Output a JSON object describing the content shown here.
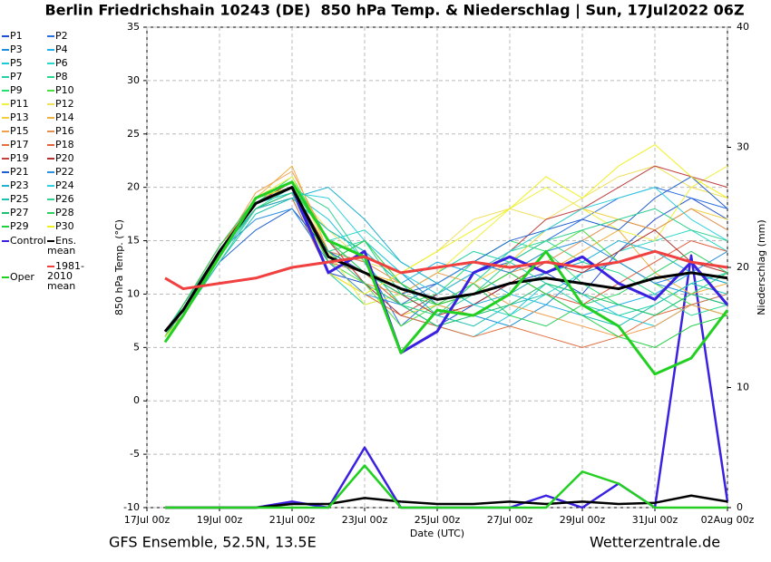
{
  "chart_data": {
    "type": "line",
    "title": "Berlin Friedrichshain 10243 (DE)  850 hPa Temp. & Niederschlag | Sun, 17Jul2022 06Z",
    "source_left": "GFS Ensemble, 52.5N, 13.5E",
    "source_right": "Wetterzentrale.de",
    "xlabel": "Date (UTC)",
    "ylabel": "850 hPa Temp. (°C)",
    "y2label": "Niederschlag (mm)",
    "x": [
      0.5,
      1,
      2,
      3,
      4,
      5,
      6,
      7,
      8,
      9,
      10,
      11,
      12,
      13,
      14,
      15,
      16
    ],
    "xlim": [
      0,
      16
    ],
    "xticks": [
      {
        "value": 0,
        "label": "17Jul 00z"
      },
      {
        "value": 2,
        "label": "19Jul 00z"
      },
      {
        "value": 4,
        "label": "21Jul 00z"
      },
      {
        "value": 6,
        "label": "23Jul 00z"
      },
      {
        "value": 8,
        "label": "25Jul 00z"
      },
      {
        "value": 10,
        "label": "27Jul 00z"
      },
      {
        "value": 12,
        "label": "29Jul 00z"
      },
      {
        "value": 14,
        "label": "31Jul 00z"
      },
      {
        "value": 16,
        "label": "02Aug 00z"
      }
    ],
    "ylim": [
      -10,
      35
    ],
    "yticks": [
      -10,
      -5,
      0,
      5,
      10,
      15,
      20,
      25,
      30,
      35
    ],
    "y2lim": [
      0,
      40
    ],
    "y2ticks": [
      0,
      10,
      20,
      30,
      40
    ],
    "grid": true,
    "series": [
      {
        "name": "P1",
        "color": "#1f4fd0",
        "values": [
          6,
          8.5,
          14,
          18,
          19.5,
          12,
          11,
          8,
          7,
          9,
          11,
          12,
          10,
          14,
          17,
          19,
          17
        ]
      },
      {
        "name": "P2",
        "color": "#2a6ee0",
        "values": [
          6.5,
          9,
          14.5,
          19,
          20,
          14,
          13,
          7,
          10,
          12,
          13,
          15,
          17,
          19,
          20,
          19,
          18
        ]
      },
      {
        "name": "P3",
        "color": "#1e8fd8",
        "values": [
          6,
          8,
          13.5,
          18.5,
          20,
          13,
          15,
          12,
          9,
          8,
          7,
          9,
          12,
          13,
          11,
          10,
          9
        ]
      },
      {
        "name": "P4",
        "color": "#26b0e6",
        "values": [
          6,
          8.5,
          14,
          18,
          19,
          16,
          14,
          11,
          13,
          12,
          10,
          9,
          8,
          9,
          10,
          12,
          11
        ]
      },
      {
        "name": "P5",
        "color": "#1ec8d8",
        "values": [
          6.5,
          9,
          14,
          18.5,
          19.5,
          17,
          13,
          9,
          7,
          6,
          8,
          11,
          10,
          8,
          7,
          9,
          10
        ]
      },
      {
        "name": "P6",
        "color": "#2ad8c8",
        "values": [
          6,
          8.5,
          13.5,
          19,
          20,
          15,
          16,
          13,
          11,
          9,
          8,
          10,
          12,
          14,
          15,
          16,
          14
        ]
      },
      {
        "name": "P7",
        "color": "#22d0a8",
        "values": [
          6,
          9,
          14,
          18,
          19,
          12,
          9,
          10,
          12,
          14,
          13,
          11,
          9,
          8,
          9,
          11,
          12
        ]
      },
      {
        "name": "P8",
        "color": "#2ad890",
        "values": [
          6.5,
          8,
          13,
          18,
          20,
          14,
          15,
          10,
          8,
          11,
          14,
          15,
          13,
          12,
          10,
          8,
          9
        ]
      },
      {
        "name": "P9",
        "color": "#28e070",
        "values": [
          6,
          8.5,
          14,
          18.5,
          21,
          15,
          12,
          9,
          10,
          13,
          15,
          14,
          11,
          9,
          8,
          10,
          12
        ]
      },
      {
        "name": "P10",
        "color": "#4ce040",
        "values": [
          6,
          9,
          14,
          19,
          20.5,
          13,
          11,
          7,
          9,
          10,
          12,
          14,
          16,
          13,
          11,
          9,
          8
        ]
      },
      {
        "name": "P11",
        "color": "#f0f040",
        "values": [
          6.5,
          9,
          14.5,
          19,
          21,
          14,
          9,
          10,
          12,
          15,
          18,
          20,
          18,
          16,
          15,
          20,
          22
        ]
      },
      {
        "name": "P12",
        "color": "#f0e060",
        "values": [
          6,
          8.5,
          14,
          18.5,
          20,
          16,
          13,
          12,
          14,
          17,
          18,
          17,
          19,
          21,
          22,
          20,
          19
        ]
      },
      {
        "name": "P13",
        "color": "#f0d040",
        "values": [
          6,
          8,
          13.5,
          18,
          19.5,
          13,
          10,
          8,
          9,
          11,
          13,
          16,
          18,
          17,
          16,
          18,
          17
        ]
      },
      {
        "name": "P14",
        "color": "#f0b040",
        "values": [
          6.5,
          9,
          14,
          19,
          22,
          14,
          12,
          11,
          9,
          8,
          10,
          12,
          14,
          16,
          12,
          10,
          11
        ]
      },
      {
        "name": "P15",
        "color": "#f0a050",
        "values": [
          6,
          8.5,
          14,
          19.5,
          21.5,
          15,
          11,
          10,
          12,
          11,
          9,
          8,
          7,
          6,
          7,
          9,
          8
        ]
      },
      {
        "name": "P16",
        "color": "#e09050",
        "values": [
          6,
          9,
          14.5,
          18.5,
          20,
          14,
          13,
          11,
          9,
          10,
          12,
          13,
          15,
          17,
          16,
          18,
          16
        ]
      },
      {
        "name": "P17",
        "color": "#e07040",
        "values": [
          6.5,
          8,
          13.5,
          18,
          19,
          12,
          10,
          8,
          7,
          6,
          7,
          6,
          5,
          6,
          8,
          9,
          10
        ]
      },
      {
        "name": "P18",
        "color": "#e06040",
        "values": [
          6,
          8.5,
          14,
          19,
          20,
          13,
          12,
          9,
          11,
          13,
          12,
          10,
          9,
          11,
          13,
          15,
          14
        ]
      },
      {
        "name": "P19",
        "color": "#c04040",
        "values": [
          6,
          9,
          14,
          18.5,
          20.5,
          15,
          11,
          8,
          10,
          12,
          14,
          17,
          18,
          20,
          22,
          21,
          20
        ]
      },
      {
        "name": "P20",
        "color": "#b03030",
        "values": [
          6.5,
          8.5,
          14,
          19,
          20,
          14,
          12,
          10,
          8,
          9,
          11,
          13,
          12,
          14,
          16,
          13,
          12
        ]
      },
      {
        "name": "P21",
        "color": "#2060d0",
        "values": [
          6,
          8,
          13,
          16,
          18,
          14,
          12,
          10,
          11,
          13,
          15,
          16,
          17,
          16,
          19,
          21,
          18
        ]
      },
      {
        "name": "P22",
        "color": "#3090e0",
        "values": [
          6,
          8.5,
          14,
          17,
          18,
          13,
          10,
          9,
          11,
          13,
          12,
          14,
          15,
          13,
          11,
          12,
          14
        ]
      },
      {
        "name": "P23",
        "color": "#20b0d0",
        "values": [
          6.5,
          9,
          14,
          18,
          19,
          20,
          17,
          13,
          11,
          9,
          10,
          12,
          13,
          15,
          14,
          12,
          11
        ]
      },
      {
        "name": "P24",
        "color": "#30d0e0",
        "values": [
          6,
          8.5,
          13.5,
          18,
          19.5,
          19,
          15,
          12,
          10,
          12,
          14,
          16,
          18,
          19,
          20,
          17,
          15
        ]
      },
      {
        "name": "P25",
        "color": "#20c0b0",
        "values": [
          6,
          8,
          13,
          17.5,
          19,
          16,
          14,
          11,
          8,
          7,
          9,
          10,
          8,
          7,
          9,
          11,
          10
        ]
      },
      {
        "name": "P26",
        "color": "#30d090",
        "values": [
          6.5,
          9,
          14,
          18.5,
          20,
          18,
          13,
          9,
          8,
          10,
          13,
          15,
          16,
          17,
          18,
          16,
          15
        ]
      },
      {
        "name": "P27",
        "color": "#20c070",
        "values": [
          6,
          8.5,
          14,
          18,
          19.5,
          14,
          11,
          9,
          7,
          8,
          9,
          11,
          10,
          9,
          8,
          10,
          9
        ]
      },
      {
        "name": "P28",
        "color": "#30d060",
        "values": [
          6,
          9,
          14.5,
          19,
          20,
          15,
          12,
          10,
          9,
          11,
          8,
          7,
          9,
          10,
          12,
          14,
          12
        ]
      },
      {
        "name": "P29",
        "color": "#20d040",
        "values": [
          6.5,
          8.5,
          14,
          18.5,
          20,
          13,
          15,
          11,
          9,
          10,
          12,
          10,
          8,
          6,
          5,
          7,
          8
        ]
      },
      {
        "name": "P30",
        "color": "#f0f020",
        "values": [
          6,
          8,
          13.5,
          19,
          20,
          12,
          10,
          12,
          14,
          16,
          18,
          21,
          19,
          22,
          24,
          21,
          19
        ]
      },
      {
        "name": "Control",
        "color": "#3a20e0",
        "values": [
          6.5,
          8.5,
          14,
          18.5,
          20,
          12,
          14,
          4.5,
          6.5,
          12,
          13.5,
          12,
          13.5,
          11,
          9.5,
          13,
          9
        ],
        "precip": [
          0,
          0,
          0,
          0,
          0.5,
          0,
          5,
          0,
          0,
          0,
          0,
          1,
          0,
          2,
          0,
          21,
          0.5
        ]
      },
      {
        "name": "Ens. mean",
        "color": "#000000",
        "values": [
          6.5,
          8.5,
          14,
          18.5,
          20,
          13.5,
          12,
          10.5,
          9.5,
          10,
          11,
          11.5,
          11,
          10.5,
          11.5,
          12,
          11.5
        ],
        "precip": [
          0,
          0,
          0,
          0,
          0.3,
          0.3,
          0.8,
          0.5,
          0.3,
          0.3,
          0.5,
          0.3,
          0.5,
          0.3,
          0.4,
          1,
          0.5
        ]
      },
      {
        "name": "Oper",
        "color": "#22d022",
        "values": [
          5.5,
          8,
          13.5,
          19,
          20.5,
          15,
          13.5,
          4.5,
          8.5,
          8,
          10,
          14,
          9,
          7,
          2.5,
          4,
          8.5
        ],
        "precip": [
          0,
          0,
          0,
          0,
          0,
          0,
          3.5,
          0,
          0,
          0,
          0,
          0,
          3,
          2,
          0,
          0,
          0
        ]
      },
      {
        "name": "1981-2010 mean",
        "color": "#f04040",
        "values": [
          11.5,
          10.5,
          11,
          11.5,
          12.5,
          13,
          13.5,
          12,
          12.5,
          13,
          12.5,
          13,
          12.5,
          13,
          14,
          13,
          12.5
        ]
      }
    ]
  }
}
